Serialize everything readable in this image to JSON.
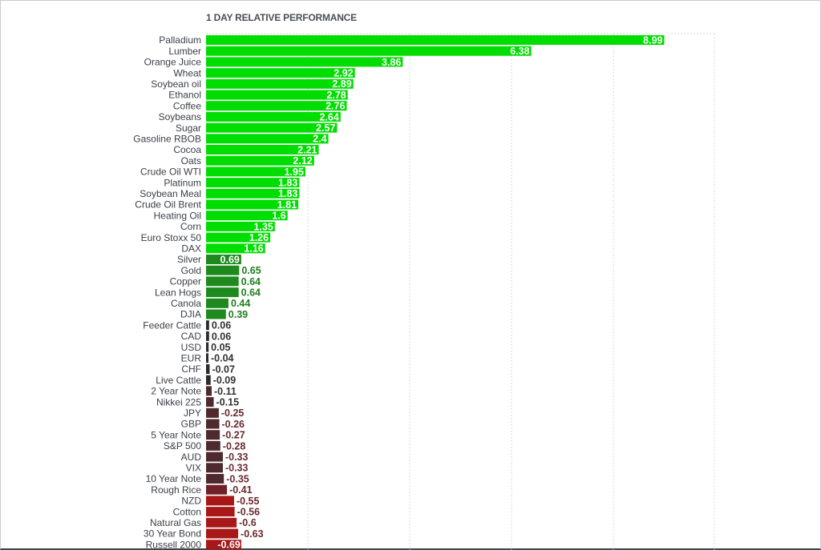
{
  "chart_data": {
    "type": "bar",
    "orientation": "horizontal",
    "title": "1 DAY RELATIVE PERFORMANCE",
    "xlim": [
      -0.69,
      9.5
    ],
    "grid": true,
    "categories": [
      "Palladium",
      "Lumber",
      "Orange Juice",
      "Wheat",
      "Soybean oil",
      "Ethanol",
      "Coffee",
      "Soybeans",
      "Sugar",
      "Gasoline RBOB",
      "Cocoa",
      "Oats",
      "Crude Oil WTI",
      "Platinum",
      "Soybean Meal",
      "Crude Oil Brent",
      "Heating Oil",
      "Corn",
      "Euro Stoxx 50",
      "DAX",
      "Silver",
      "Gold",
      "Copper",
      "Lean Hogs",
      "Canola",
      "DJIA",
      "Feeder Cattle",
      "CAD",
      "USD",
      "EUR",
      "CHF",
      "Live Cattle",
      "2 Year Note",
      "Nikkei 225",
      "JPY",
      "GBP",
      "5 Year Note",
      "S&P 500",
      "AUD",
      "VIX",
      "10 Year Note",
      "Rough Rice",
      "NZD",
      "Cotton",
      "Natural Gas",
      "30 Year Bond",
      "Russell 2000"
    ],
    "values": [
      8.99,
      6.38,
      3.86,
      2.92,
      2.89,
      2.78,
      2.76,
      2.64,
      2.57,
      2.4,
      2.21,
      2.12,
      1.95,
      1.83,
      1.83,
      1.81,
      1.6,
      1.35,
      1.26,
      1.16,
      0.69,
      0.65,
      0.64,
      0.64,
      0.44,
      0.39,
      0.06,
      0.06,
      0.05,
      -0.04,
      -0.07,
      -0.09,
      -0.11,
      -0.15,
      -0.25,
      -0.26,
      -0.27,
      -0.28,
      -0.33,
      -0.33,
      -0.35,
      -0.41,
      -0.55,
      -0.56,
      -0.6,
      -0.63,
      -0.69
    ],
    "value_labels": [
      "8.99",
      "6.38",
      "3.86",
      "2.92",
      "2.89",
      "2.78",
      "2.76",
      "2.64",
      "2.57",
      "2.4",
      "2.21",
      "2.12",
      "1.95",
      "1.83",
      "1.83",
      "1.81",
      "1.6",
      "1.35",
      "1.26",
      "1.16",
      "0.69",
      "0.65",
      "0.64",
      "0.64",
      "0.44",
      "0.39",
      "0.06",
      "0.06",
      "0.05",
      "-0.04",
      "-0.07",
      "-0.09",
      "-0.11",
      "-0.15",
      "-0.25",
      "-0.26",
      "-0.27",
      "-0.28",
      "-0.33",
      "-0.33",
      "-0.35",
      "-0.41",
      "-0.55",
      "-0.56",
      "-0.6",
      "-0.63",
      "-0.69"
    ],
    "colors": {
      "strong_positive": "#00dd00",
      "moderate_positive": "#1e8a1e",
      "near_zero": "#2b2b2b",
      "weak_negative": "#4e2a2e",
      "moderate_negative": "#702028",
      "strong_negative": "#a81818",
      "positive_label_outside": "#1e7d1e",
      "neutral_label_outside": "#333333",
      "negative_label_outside": "#6a2a2f",
      "label_inside": "#ffffff",
      "grid": "#d7dbe0"
    }
  }
}
